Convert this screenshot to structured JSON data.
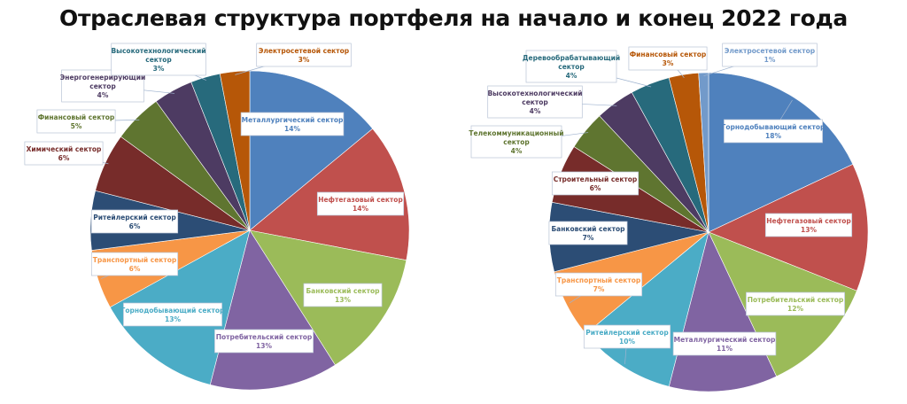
{
  "chart_data": [
    {
      "type": "pie",
      "title": "Отраслевая структура портфеля на начало и конец 2022 года",
      "categories": [
        "Металлургический сектор",
        "Нефтегазовый сектор",
        "Банковский сектор",
        "Потребительский сектор",
        "Горнодобывающий сектор",
        "Транспортный сектор",
        "Ритейлерский сектор",
        "Химический сектор",
        "Финансовый сектор",
        "Энергогенерирующий сектор",
        "Высокотехнологический сектор",
        "Электросетевой сектор"
      ],
      "values": [
        14,
        14,
        13,
        13,
        13,
        6,
        6,
        6,
        5,
        4,
        3,
        3
      ],
      "labels": [
        "14%",
        "14%",
        "13%",
        "13%",
        "13%",
        "6%",
        "6%",
        "6%",
        "5%",
        "4%",
        "3%",
        "3%"
      ],
      "colors": [
        "#4f81bd",
        "#c0504d",
        "#9bbb59",
        "#8064a2",
        "#4bacc6",
        "#f79646",
        "#2c4d75",
        "#772c2a",
        "#5f7530",
        "#4d3b62",
        "#276a7c",
        "#b65708"
      ]
    },
    {
      "type": "pie",
      "categories": [
        "Горнодобывающий сектор",
        "Нефтегазовый сектор",
        "Потребительский сектор",
        "Металлургический сектор",
        "Ритейлерский сектор",
        "Транспортный сектор",
        "Банковский сектор",
        "Строительный сектор",
        "Телекоммуникационный сектор",
        "Высокотехнологический сектор",
        "Деревообрабатывающий сектор",
        "Финансовый сектор",
        "Электросетевой сектор"
      ],
      "values": [
        18,
        13,
        12,
        11,
        10,
        7,
        7,
        6,
        4,
        4,
        4,
        3,
        1
      ],
      "labels": [
        "18%",
        "13%",
        "12%",
        "11%",
        "10%",
        "7%",
        "7%",
        "6%",
        "4%",
        "4%",
        "4%",
        "3%",
        "1%"
      ],
      "colors": [
        "#4f81bd",
        "#c0504d",
        "#9bbb59",
        "#8064a2",
        "#4bacc6",
        "#f79646",
        "#2c4d75",
        "#772c2a",
        "#5f7530",
        "#4d3b62",
        "#276a7c",
        "#b65708",
        "#729aca"
      ]
    }
  ]
}
